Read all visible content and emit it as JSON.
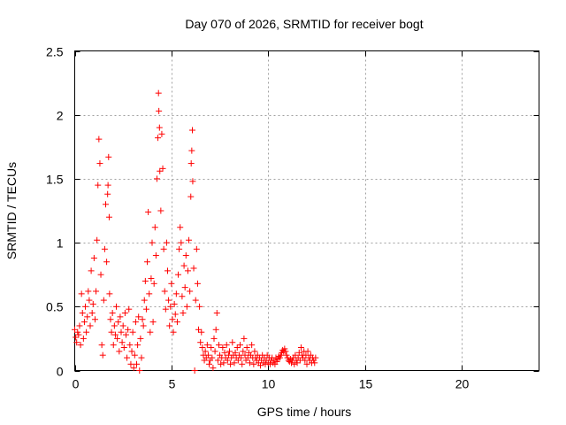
{
  "chart_data": {
    "type": "scatter",
    "title": "Day 070 of 2026, SRMTID for receiver bogt",
    "xlabel": "GPS time / hours",
    "ylabel": "SRMTID / TECUs",
    "xlim": [
      0,
      24
    ],
    "ylim": [
      0,
      2.5
    ],
    "xticks": [
      0,
      5,
      10,
      15,
      20
    ],
    "xtick_labels": [
      "0",
      "5",
      "10",
      "15",
      "20"
    ],
    "yticks": [
      0,
      0.5,
      1,
      1.5,
      2,
      2.5
    ],
    "ytick_labels": [
      "0",
      "0.5",
      "1",
      "1.5",
      "2",
      "2.5"
    ],
    "grid": true,
    "marker": "+",
    "series": [
      {
        "name": "SRMTID",
        "color": "#ff0000",
        "points": [
          [
            0.0,
            0.32
          ],
          [
            0.05,
            0.26
          ],
          [
            0.1,
            0.22
          ],
          [
            0.15,
            0.3
          ],
          [
            0.2,
            0.28
          ],
          [
            0.25,
            0.35
          ],
          [
            0.3,
            0.2
          ],
          [
            0.35,
            0.6
          ],
          [
            0.4,
            0.45
          ],
          [
            0.45,
            0.25
          ],
          [
            0.5,
            0.38
          ],
          [
            0.55,
            0.5
          ],
          [
            0.6,
            0.3
          ],
          [
            0.65,
            0.42
          ],
          [
            0.7,
            0.62
          ],
          [
            0.75,
            0.55
          ],
          [
            0.8,
            0.35
          ],
          [
            0.85,
            0.78
          ],
          [
            0.9,
            0.45
          ],
          [
            0.95,
            0.52
          ],
          [
            1.0,
            0.88
          ],
          [
            1.05,
            0.4
          ],
          [
            1.1,
            0.62
          ],
          [
            1.15,
            1.02
          ],
          [
            1.2,
            1.45
          ],
          [
            1.25,
            1.81
          ],
          [
            1.3,
            1.62
          ],
          [
            1.35,
            0.75
          ],
          [
            1.4,
            0.2
          ],
          [
            1.45,
            0.12
          ],
          [
            1.5,
            0.55
          ],
          [
            1.55,
            0.95
          ],
          [
            1.6,
            1.3
          ],
          [
            1.65,
            0.85
          ],
          [
            1.7,
            1.38
          ],
          [
            1.72,
            1.45
          ],
          [
            1.75,
            1.67
          ],
          [
            1.78,
            1.2
          ],
          [
            1.8,
            0.6
          ],
          [
            1.85,
            0.4
          ],
          [
            1.9,
            0.3
          ],
          [
            1.95,
            0.45
          ],
          [
            2.0,
            0.2
          ],
          [
            2.05,
            0.35
          ],
          [
            2.1,
            0.28
          ],
          [
            2.15,
            0.5
          ],
          [
            2.2,
            0.25
          ],
          [
            2.25,
            0.38
          ],
          [
            2.3,
            0.15
          ],
          [
            2.35,
            0.42
          ],
          [
            2.4,
            0.3
          ],
          [
            2.45,
            0.22
          ],
          [
            2.5,
            0.35
          ],
          [
            2.55,
            0.18
          ],
          [
            2.6,
            0.45
          ],
          [
            2.65,
            0.28
          ],
          [
            2.7,
            0.1
          ],
          [
            2.75,
            0.32
          ],
          [
            2.8,
            0.48
          ],
          [
            2.85,
            0.2
          ],
          [
            2.9,
            0.05
          ],
          [
            2.95,
            0.15
          ],
          [
            3.0,
            0.3
          ],
          [
            3.05,
            0.02
          ],
          [
            3.1,
            0.12
          ],
          [
            3.15,
            0.38
          ],
          [
            3.2,
            0.05
          ],
          [
            3.25,
            0.2
          ],
          [
            3.3,
            0.42
          ],
          [
            3.35,
            0.0
          ],
          [
            3.4,
            0.25
          ],
          [
            3.45,
            0.1
          ],
          [
            3.5,
            0.4
          ],
          [
            3.55,
            0.35
          ],
          [
            3.6,
            0.55
          ],
          [
            3.65,
            0.7
          ],
          [
            3.7,
            0.48
          ],
          [
            3.75,
            0.85
          ],
          [
            3.8,
            1.24
          ],
          [
            3.85,
            0.6
          ],
          [
            3.9,
            0.3
          ],
          [
            3.95,
            0.72
          ],
          [
            4.0,
            1.0
          ],
          [
            4.05,
            0.38
          ],
          [
            4.1,
            0.68
          ],
          [
            4.15,
            1.12
          ],
          [
            4.2,
            0.9
          ],
          [
            4.25,
            1.5
          ],
          [
            4.3,
            1.82
          ],
          [
            4.33,
            2.17
          ],
          [
            4.35,
            2.03
          ],
          [
            4.38,
            1.9
          ],
          [
            4.4,
            1.56
          ],
          [
            4.45,
            1.25
          ],
          [
            4.5,
            1.85
          ],
          [
            4.55,
            1.58
          ],
          [
            4.6,
            0.95
          ],
          [
            4.65,
            0.62
          ],
          [
            4.7,
            0.48
          ],
          [
            4.75,
            1.0
          ],
          [
            4.8,
            0.78
          ],
          [
            4.85,
            0.55
          ],
          [
            4.9,
            0.35
          ],
          [
            4.95,
            0.5
          ],
          [
            5.0,
            0.68
          ],
          [
            5.05,
            0.4
          ],
          [
            5.1,
            0.3
          ],
          [
            5.15,
            0.52
          ],
          [
            5.2,
            0.44
          ],
          [
            5.25,
            0.6
          ],
          [
            5.3,
            0.38
          ],
          [
            5.35,
            0.75
          ],
          [
            5.4,
            0.95
          ],
          [
            5.45,
            1.12
          ],
          [
            5.5,
            1.0
          ],
          [
            5.55,
            0.58
          ],
          [
            5.6,
            0.45
          ],
          [
            5.65,
            0.82
          ],
          [
            5.7,
            0.65
          ],
          [
            5.75,
            0.9
          ],
          [
            5.8,
            0.5
          ],
          [
            5.85,
            0.78
          ],
          [
            5.9,
            1.02
          ],
          [
            5.95,
            0.62
          ],
          [
            6.0,
            1.36
          ],
          [
            6.02,
            1.62
          ],
          [
            6.05,
            1.72
          ],
          [
            6.08,
            1.88
          ],
          [
            6.1,
            1.48
          ],
          [
            6.15,
            0.8
          ],
          [
            6.2,
            0.0
          ],
          [
            6.25,
            0.55
          ],
          [
            6.3,
            0.95
          ],
          [
            6.35,
            0.68
          ],
          [
            6.4,
            0.32
          ],
          [
            6.45,
            0.5
          ],
          [
            6.5,
            0.22
          ],
          [
            6.55,
            0.3
          ],
          [
            6.6,
            0.18
          ],
          [
            6.65,
            0.12
          ],
          [
            6.7,
            0.08
          ],
          [
            6.75,
            0.15
          ],
          [
            6.8,
            0.1
          ],
          [
            6.85,
            0.2
          ],
          [
            6.9,
            0.12
          ],
          [
            6.95,
            0.05
          ],
          [
            7.0,
            0.08
          ],
          [
            7.05,
            0.18
          ],
          [
            7.1,
            0.1
          ],
          [
            7.15,
            0.02
          ],
          [
            7.2,
            0.25
          ],
          [
            7.25,
            0.15
          ],
          [
            7.3,
            0.32
          ],
          [
            7.35,
            0.45
          ],
          [
            7.4,
            0.08
          ],
          [
            7.45,
            0.2
          ],
          [
            7.5,
            0.12
          ],
          [
            7.55,
            0.05
          ],
          [
            7.6,
            0.1
          ],
          [
            7.65,
            0.18
          ],
          [
            7.7,
            0.06
          ],
          [
            7.75,
            0.14
          ],
          [
            7.8,
            0.1
          ],
          [
            7.85,
            0.2
          ],
          [
            7.9,
            0.08
          ],
          [
            7.95,
            0.12
          ],
          [
            8.0,
            0.15
          ],
          [
            8.05,
            0.05
          ],
          [
            8.1,
            0.1
          ],
          [
            8.15,
            0.22
          ],
          [
            8.2,
            0.12
          ],
          [
            8.25,
            0.06
          ],
          [
            8.3,
            0.14
          ],
          [
            8.35,
            0.1
          ],
          [
            8.4,
            0.18
          ],
          [
            8.45,
            0.08
          ],
          [
            8.5,
            0.12
          ],
          [
            8.55,
            0.2
          ],
          [
            8.6,
            0.1
          ],
          [
            8.65,
            0.05
          ],
          [
            8.7,
            0.15
          ],
          [
            8.75,
            0.25
          ],
          [
            8.8,
            0.12
          ],
          [
            8.85,
            0.08
          ],
          [
            8.9,
            0.18
          ],
          [
            8.95,
            0.1
          ],
          [
            9.0,
            0.14
          ],
          [
            9.05,
            0.06
          ],
          [
            9.1,
            0.12
          ],
          [
            9.15,
            0.2
          ],
          [
            9.2,
            0.1
          ],
          [
            9.25,
            0.05
          ],
          [
            9.3,
            0.15
          ],
          [
            9.35,
            0.1
          ],
          [
            9.4,
            0.08
          ],
          [
            9.45,
            0.12
          ],
          [
            9.5,
            0.06
          ],
          [
            9.55,
            0.1
          ],
          [
            9.6,
            0.04
          ],
          [
            9.65,
            0.08
          ],
          [
            9.7,
            0.12
          ],
          [
            9.75,
            0.06
          ],
          [
            9.8,
            0.1
          ],
          [
            9.85,
            0.05
          ],
          [
            9.9,
            0.08
          ],
          [
            9.95,
            0.12
          ],
          [
            10.0,
            0.06
          ],
          [
            10.05,
            0.1
          ],
          [
            10.1,
            0.05
          ],
          [
            10.15,
            0.08
          ],
          [
            10.2,
            0.1
          ],
          [
            10.25,
            0.06
          ],
          [
            10.3,
            0.08
          ],
          [
            10.35,
            0.05
          ],
          [
            10.4,
            0.1
          ],
          [
            10.45,
            0.07
          ],
          [
            10.5,
            0.09
          ],
          [
            10.55,
            0.11
          ],
          [
            10.6,
            0.1
          ],
          [
            10.65,
            0.12
          ],
          [
            10.7,
            0.14
          ],
          [
            10.75,
            0.16
          ],
          [
            10.8,
            0.15
          ],
          [
            10.85,
            0.17
          ],
          [
            10.9,
            0.15
          ],
          [
            10.95,
            0.12
          ],
          [
            11.0,
            0.1
          ],
          [
            11.05,
            0.08
          ],
          [
            11.1,
            0.07
          ],
          [
            11.15,
            0.09
          ],
          [
            11.2,
            0.06
          ],
          [
            11.25,
            0.08
          ],
          [
            11.3,
            0.1
          ],
          [
            11.35,
            0.05
          ],
          [
            11.4,
            0.12
          ],
          [
            11.45,
            0.08
          ],
          [
            11.5,
            0.06
          ],
          [
            11.55,
            0.1
          ],
          [
            11.6,
            0.14
          ],
          [
            11.65,
            0.08
          ],
          [
            11.7,
            0.18
          ],
          [
            11.75,
            0.12
          ],
          [
            11.8,
            0.1
          ],
          [
            11.85,
            0.15
          ],
          [
            11.9,
            0.08
          ],
          [
            11.95,
            0.12
          ],
          [
            12.0,
            0.05
          ],
          [
            12.05,
            0.15
          ],
          [
            12.1,
            0.1
          ],
          [
            12.15,
            0.08
          ],
          [
            12.2,
            0.12
          ],
          [
            12.25,
            0.06
          ],
          [
            12.3,
            0.1
          ],
          [
            12.35,
            0.08
          ],
          [
            12.4,
            0.06
          ],
          [
            12.45,
            0.1
          ]
        ]
      }
    ]
  }
}
